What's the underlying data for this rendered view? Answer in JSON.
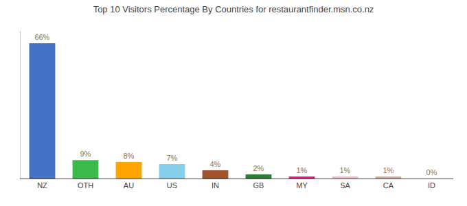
{
  "chart_data": {
    "type": "bar",
    "title": "Top 10 Visitors Percentage By Countries for restaurantfinder.msn.co.nz",
    "categories": [
      "NZ",
      "OTH",
      "AU",
      "US",
      "IN",
      "GB",
      "MY",
      "SA",
      "CA",
      "ID"
    ],
    "values": [
      66,
      9,
      8,
      7,
      4,
      2,
      1,
      1,
      1,
      0
    ],
    "value_labels": [
      "66%",
      "9%",
      "8%",
      "7%",
      "4%",
      "2%",
      "1%",
      "1%",
      "1%",
      "0%"
    ],
    "colors": [
      "#4472C4",
      "#3DB84A",
      "#FFA500",
      "#87CEEB",
      "#A0522D",
      "#2E7D32",
      "#FF1493",
      "#FFB6C1",
      "#E8A898",
      "#E8A898"
    ],
    "ylim": [
      0,
      72
    ],
    "grid": false,
    "data_labels": true,
    "tick_labels": "x"
  }
}
